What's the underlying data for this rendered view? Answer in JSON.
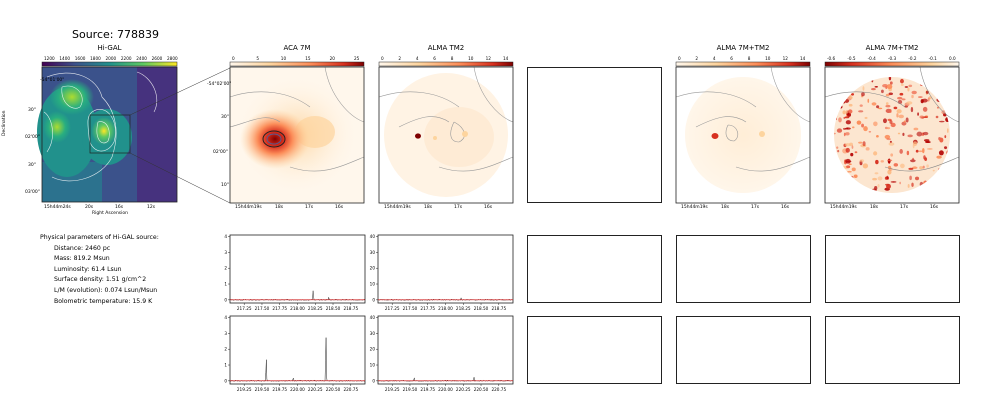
{
  "source_title": "Source: 778839",
  "panels": {
    "higal": {
      "title": "Hi-GAL",
      "cbar_ticks": [
        "1200",
        "1400",
        "1600",
        "1800",
        "2000",
        "2200",
        "2400",
        "2600",
        "2800"
      ],
      "yticks": [
        "-54°01'00\"",
        "30\"",
        "02'00\"",
        "30\"",
        "03'00\""
      ],
      "xticks": [
        "15h44m24s",
        "20s",
        "16s",
        "12s"
      ],
      "xlabel": "Right Ascension",
      "ylabel": "Declination"
    },
    "aca7m": {
      "title": "ACA 7M",
      "cbar_ticks": [
        "0",
        "5",
        "10",
        "15",
        "20",
        "25"
      ],
      "yticks": [
        "-54°02'00\"",
        "30\"",
        "02'00\"",
        "10\""
      ],
      "xticks": [
        "15h44m19s",
        "18s",
        "17s",
        "16s"
      ]
    },
    "almatm2": {
      "title": "ALMA TM2",
      "cbar_ticks": [
        "0",
        "2",
        "4",
        "6",
        "8",
        "10",
        "12",
        "14"
      ],
      "xticks": [
        "15h44m19s",
        "18s",
        "17s",
        "16s"
      ]
    },
    "alma7mtm2": {
      "title": "ALMA 7M+TM2",
      "cbar_ticks": [
        "0",
        "2",
        "4",
        "6",
        "8",
        "10",
        "12",
        "14"
      ],
      "xticks": [
        "15h44m19s",
        "18s",
        "17s",
        "16s"
      ]
    },
    "alma7mtm2_resid": {
      "title": "ALMA 7M+TM2",
      "cbar_ticks": [
        "-0.6",
        "-0.5",
        "-0.4",
        "-0.3",
        "-0.2",
        "-0.1",
        "0.0"
      ],
      "xticks": [
        "15h44m19s",
        "18s",
        "17s",
        "16s"
      ]
    }
  },
  "params": {
    "header": "Physical parameters of Hi-GAL source:",
    "distance": "Distance: 2460 pc",
    "mass": "Mass: 819.2 Msun",
    "luminosity": "Luminosity: 61.4 Lsun",
    "surface_density": "Surface density: 1.51 g/cm^2",
    "lm": "L/M (evolution): 0.074 Lsun/Msun",
    "tbol": "Bolometric temperature: 15.9 K"
  },
  "chart_data": [
    {
      "type": "line",
      "panel": "spectrum-aca-row1",
      "x_ticks": [
        "217.25",
        "217.50",
        "217.75",
        "218.00",
        "218.25",
        "218.50",
        "218.75"
      ],
      "y_ticks": [
        "0",
        "1",
        "2",
        "3",
        "4"
      ],
      "xlim": [
        217.05,
        218.95
      ],
      "ylim": [
        -0.2,
        4.1
      ],
      "peaks": [
        {
          "x": 218.22,
          "y": 0.55
        },
        {
          "x": 218.44,
          "y": 0.2
        }
      ]
    },
    {
      "type": "line",
      "panel": "spectrum-tm2-row1",
      "x_ticks": [
        "217.25",
        "217.50",
        "217.75",
        "218.00",
        "218.25",
        "218.50",
        "218.75"
      ],
      "y_ticks": [
        "0",
        "10",
        "20",
        "30",
        "40"
      ],
      "xlim": [
        217.05,
        218.95
      ],
      "ylim": [
        -2,
        41
      ],
      "peaks": [
        {
          "x": 218.22,
          "y": 1.0
        }
      ]
    },
    {
      "type": "line",
      "panel": "spectrum-aca-row2",
      "x_ticks": [
        "219.25",
        "219.50",
        "219.75",
        "220.00",
        "220.25",
        "220.50",
        "220.75"
      ],
      "y_ticks": [
        "0",
        "1",
        "2",
        "3",
        "4"
      ],
      "xlim": [
        219.05,
        220.95
      ],
      "ylim": [
        -0.2,
        4.1
      ],
      "peaks": [
        {
          "x": 219.56,
          "y": 1.4
        },
        {
          "x": 220.4,
          "y": 3.05
        },
        {
          "x": 219.94,
          "y": 0.2
        }
      ]
    },
    {
      "type": "line",
      "panel": "spectrum-tm2-row2",
      "x_ticks": [
        "219.25",
        "219.50",
        "219.75",
        "220.00",
        "220.25",
        "220.50",
        "220.75"
      ],
      "y_ticks": [
        "0",
        "10",
        "20",
        "30",
        "40"
      ],
      "xlim": [
        219.05,
        220.95
      ],
      "ylim": [
        -2,
        41
      ],
      "peaks": [
        {
          "x": 219.56,
          "y": 2.0
        },
        {
          "x": 220.4,
          "y": 2.5
        }
      ]
    }
  ]
}
